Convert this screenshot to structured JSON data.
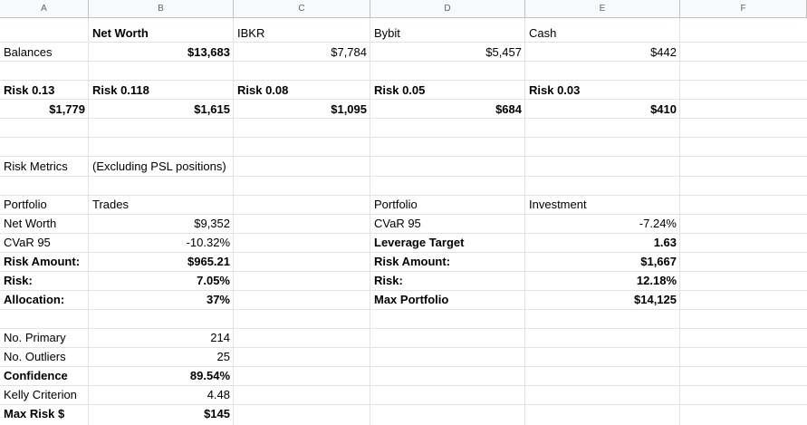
{
  "columns": [
    "A",
    "B",
    "C",
    "D",
    "E",
    "F"
  ],
  "balances_section": {
    "header_row": {
      "b": "Net Worth",
      "c": "IBKR",
      "d": "Bybit",
      "e": "Cash"
    },
    "balances_row": {
      "label": "Balances",
      "b": "$13,683",
      "c": "$7,784",
      "d": "$5,457",
      "e": "$442"
    }
  },
  "risk_section": {
    "labels": {
      "a": "Risk 0.13",
      "b": "Risk 0.118",
      "c": "Risk 0.08",
      "d": "Risk 0.05",
      "e": "Risk 0.03"
    },
    "values": {
      "a": "$1,779",
      "b": "$1,615",
      "c": "$1,095",
      "d": "$684",
      "e": "$410"
    }
  },
  "metrics_header": {
    "a": "Risk Metrics",
    "b": "(Excluding PSL positions)"
  },
  "left_metrics": {
    "header": {
      "a": "Portfolio",
      "b": "Trades"
    },
    "rows": [
      {
        "label": "Net Worth",
        "value": "$9,352"
      },
      {
        "label": "CVaR 95",
        "value": "-10.32%"
      },
      {
        "label": "Risk Amount:",
        "value": "$965.21"
      },
      {
        "label": "Risk:",
        "value": "7.05%"
      },
      {
        "label": "Allocation:",
        "value": "37%"
      }
    ]
  },
  "right_metrics": {
    "header": {
      "d": "Portfolio",
      "e": "Investment"
    },
    "rows": [
      {
        "label": "CVaR 95",
        "value": "-7.24%"
      },
      {
        "label": "Leverage Target",
        "value": "1.63"
      },
      {
        "label": "Risk Amount:",
        "value": "$1,667"
      },
      {
        "label": "Risk:",
        "value": "12.18%"
      },
      {
        "label": "Max Portfolio",
        "value": "$14,125"
      }
    ]
  },
  "kelly_section": {
    "rows": [
      {
        "label": "No. Primary",
        "value": "214"
      },
      {
        "label": "No. Outliers",
        "value": "25"
      },
      {
        "label": "Confidence",
        "value": "89.54%"
      },
      {
        "label": "Kelly Criterion",
        "value": "4.48"
      },
      {
        "label": "Max Risk $",
        "value": "$145"
      }
    ]
  }
}
